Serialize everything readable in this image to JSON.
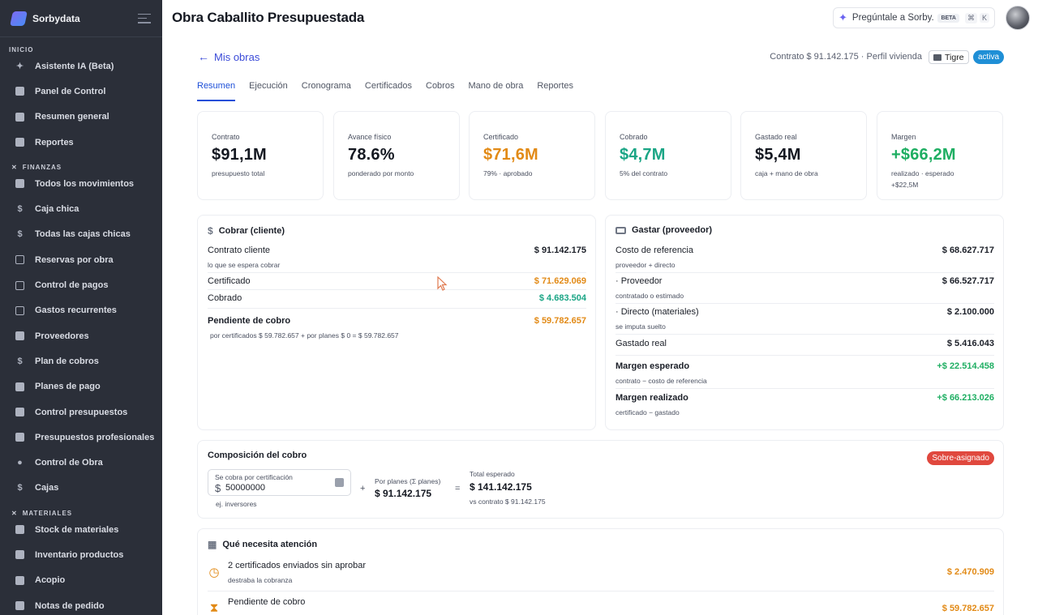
{
  "sidebar": {
    "brand": "Sorbydata",
    "sections": {
      "inicio": "INICIO",
      "finanzas": "FINANZAS",
      "materiales": "MATERIALES"
    },
    "items": [
      {
        "label": "Asistente IA (Beta)",
        "icon": "sparkle-icon"
      },
      {
        "label": "Panel de Control",
        "icon": "building-icon"
      },
      {
        "label": "Resumen general",
        "icon": "grid-icon"
      },
      {
        "label": "Reportes",
        "icon": "report-icon"
      },
      {
        "label": "Todos los movimientos",
        "icon": "building-icon"
      },
      {
        "label": "Caja chica",
        "icon": "dollar-icon"
      },
      {
        "label": "Todas las cajas chicas",
        "icon": "dollar-icon"
      },
      {
        "label": "Reservas por obra",
        "icon": "wallet-icon"
      },
      {
        "label": "Control de pagos",
        "icon": "payment-icon"
      },
      {
        "label": "Gastos recurrentes",
        "icon": "repeat-icon"
      },
      {
        "label": "Proveedores",
        "icon": "truck-icon"
      },
      {
        "label": "Plan de cobros",
        "icon": "dollar-icon"
      },
      {
        "label": "Planes de pago",
        "icon": "card-icon"
      },
      {
        "label": "Control presupuestos",
        "icon": "calculator-icon"
      },
      {
        "label": "Presupuestos profesionales",
        "icon": "document-icon"
      },
      {
        "label": "Control de Obra",
        "icon": "worker-icon"
      },
      {
        "label": "Cajas",
        "icon": "dollar-icon"
      },
      {
        "label": "Stock de materiales",
        "icon": "box-icon"
      },
      {
        "label": "Inventario productos",
        "icon": "box-icon"
      },
      {
        "label": "Acopio",
        "icon": "box-icon"
      },
      {
        "label": "Notas de pedido",
        "icon": "note-icon"
      }
    ]
  },
  "header": {
    "title": "Obra Caballito Presupuestada",
    "ask_label": "Pregúntale a Sorby...",
    "beta": "BETA",
    "kbd1": "⌘",
    "kbd2": "K"
  },
  "subheader": {
    "back": "Mis obras",
    "contract": "Contrato $ 91.142.175 · Perfil vivienda",
    "tag": "Tigre",
    "status": "activa"
  },
  "tabs": [
    "Resumen",
    "Ejecución",
    "Cronograma",
    "Certificados",
    "Cobros",
    "Mano de obra",
    "Reportes"
  ],
  "kpis": [
    {
      "label": "Contrato",
      "value": "$91,1M",
      "sub": "presupuesto total",
      "sub2": ""
    },
    {
      "label": "Avance físico",
      "value": "78.6%",
      "sub": "ponderado por monto",
      "sub2": ""
    },
    {
      "label": "Certificado",
      "value": "$71,6M",
      "sub": "79% · aprobado",
      "sub2": ""
    },
    {
      "label": "Cobrado",
      "value": "$4,7M",
      "sub": "5% del contrato",
      "sub2": ""
    },
    {
      "label": "Gastado real",
      "value": "$5,4M",
      "sub": "caja + mano de obra",
      "sub2": ""
    },
    {
      "label": "Margen",
      "value": "+$66,2M",
      "sub": "realizado · esperado",
      "sub2": "+$22,5M"
    }
  ],
  "cobrar": {
    "title": "Cobrar (cliente)",
    "contrato_label": "Contrato cliente",
    "contrato_sub": "lo que se espera cobrar",
    "contrato_value": "$ 91.142.175",
    "certificado_label": "Certificado",
    "certificado_value": "$ 71.629.069",
    "cobrado_label": "Cobrado",
    "cobrado_value": "$ 4.683.504",
    "pendiente_label": "Pendiente de cobro",
    "pendiente_value": "$ 59.782.657",
    "pendiente_sub": "por certificados $ 59.782.657 + por planes $ 0 = $ 59.782.657"
  },
  "gastar": {
    "title": "Gastar (proveedor)",
    "costo_label": "Costo de referencia",
    "costo_sub": "proveedor + directo",
    "costo_value": "$ 68.627.717",
    "proveedor_label": "· Proveedor",
    "proveedor_sub": "contratado o estimado",
    "proveedor_value": "$ 66.527.717",
    "directo_label": "· Directo (materiales)",
    "directo_sub": "se imputa suelto",
    "directo_value": "$ 2.100.000",
    "gastado_label": "Gastado real",
    "gastado_value": "$ 5.416.043",
    "margen_esp_label": "Margen esperado",
    "margen_esp_sub": "contrato − costo de referencia",
    "margen_esp_value": "+$ 22.514.458",
    "margen_real_label": "Margen realizado",
    "margen_real_sub": "certificado − gastado",
    "margen_real_value": "+$ 66.213.026"
  },
  "composicion": {
    "title": "Composición del cobro",
    "badge": "Sobre-asignado",
    "input_label": "Se cobra por certificación",
    "input_currency": "$",
    "input_value": "50000000",
    "hint": "ej. inversores",
    "plus": "+",
    "planes_label": "Por planes (Σ planes)",
    "planes_value": "$ 91.142.175",
    "equals": "=",
    "total_label": "Total esperado",
    "total_value": "$ 141.142.175",
    "total_sub": "vs contrato $ 91.142.175"
  },
  "atencion": {
    "title": "Qué necesita atención",
    "items": [
      {
        "label": "2 certificados enviados sin aprobar",
        "sub": "destraba la cobranza",
        "value": "$ 2.470.909",
        "icon": "clock-icon"
      },
      {
        "label": "Pendiente de cobro",
        "sub": "",
        "value": "$ 59.782.657",
        "icon": "hourglass-icon"
      }
    ]
  },
  "colors": {
    "accent": "#1d4fd8",
    "orange": "#e28a16",
    "teal": "#1aa585",
    "green": "#1eae62",
    "red": "#e0483e",
    "sidebar": "#2b2f39"
  }
}
